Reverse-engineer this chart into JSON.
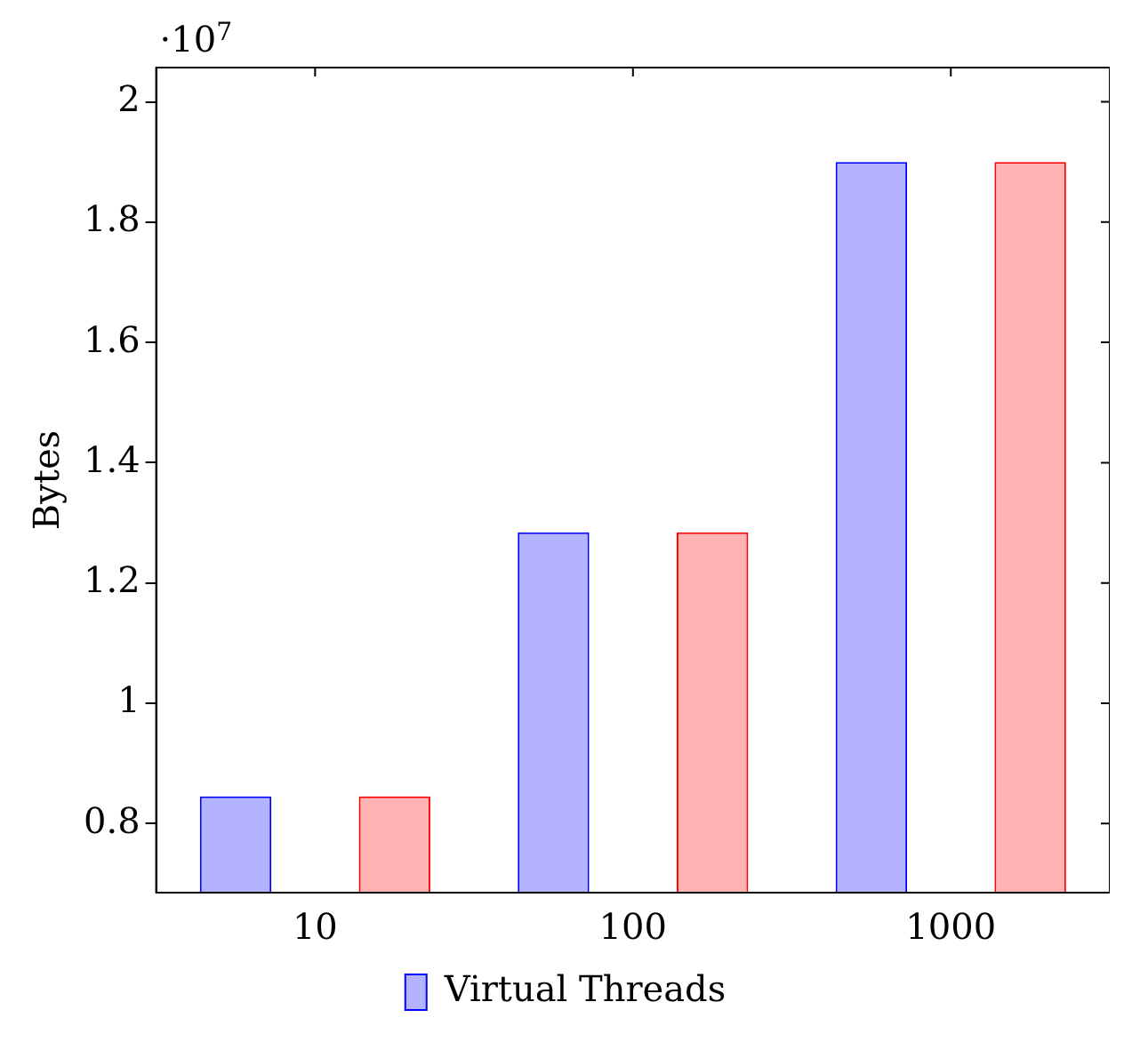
{
  "chart_data": {
    "type": "bar",
    "ylabel": "Bytes",
    "annotations": [
      "·10$^{7}$"
    ],
    "categories": [
      "10",
      "100",
      "1000"
    ],
    "series": [
      {
        "name": "Virtual Threads",
        "color": "#b3b3ff",
        "values": [
          0.845,
          1.284,
          1.9
        ]
      },
      {
        "color": "#ffb3b3",
        "values": [
          0.845,
          1.284,
          1.9
        ]
      }
    ],
    "ylim": [
      0.685,
      2.057
    ],
    "yticks": [
      0.8,
      1,
      1.2,
      1.4,
      1.6,
      1.8,
      2
    ],
    "grid": false,
    "legend": "bottom"
  }
}
